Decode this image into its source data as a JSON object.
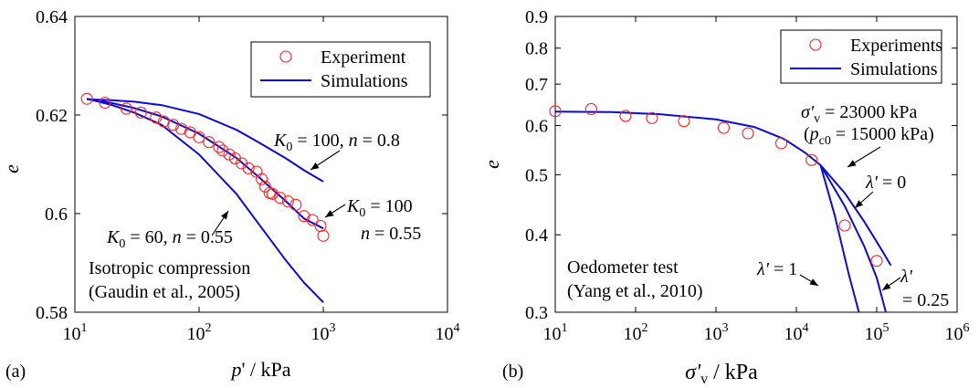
{
  "chart_data": [
    {
      "type": "scatter",
      "panel_label": "(a)",
      "xlabel": "p' / kPa",
      "ylabel": "e",
      "x_scale": "log",
      "xlim": [
        10,
        10000
      ],
      "ylim": [
        0.58,
        0.64
      ],
      "x_ticks": [
        10,
        100,
        1000,
        10000
      ],
      "x_tick_labels": [
        {
          "base": "10",
          "exp": "1"
        },
        {
          "base": "10",
          "exp": "2"
        },
        {
          "base": "10",
          "exp": "3"
        },
        {
          "base": "10",
          "exp": "4"
        }
      ],
      "y_ticks": [
        0.58,
        0.6,
        0.62,
        0.64
      ],
      "y_tick_labels": [
        "0.58",
        "0.6",
        "0.62",
        "0.64"
      ],
      "legend": {
        "position": "top-right",
        "entries": [
          {
            "label": "Experiment",
            "marker": "circle"
          },
          {
            "label": "Simulations",
            "marker": "line"
          }
        ]
      },
      "series": [
        {
          "name": "Experiment",
          "kind": "points",
          "color": "#ff2020",
          "x": [
            12.5,
            17.5,
            26,
            34,
            45,
            52,
            62,
            72,
            85,
            100,
            120,
            145,
            155,
            175,
            195,
            220,
            250,
            290,
            320,
            340,
            370,
            390,
            450,
            520,
            600,
            700,
            820,
            950,
            1000
          ],
          "y": [
            0.6233,
            0.6225,
            0.6213,
            0.6205,
            0.6195,
            0.6187,
            0.618,
            0.6172,
            0.6165,
            0.6155,
            0.6145,
            0.6135,
            0.6128,
            0.612,
            0.6112,
            0.6102,
            0.6092,
            0.6085,
            0.607,
            0.6055,
            0.6042,
            0.604,
            0.6032,
            0.6025,
            0.6018,
            0.5995,
            0.5987,
            0.5975,
            0.5955
          ]
        },
        {
          "name": "Simulations",
          "kind": "line",
          "color": "#0a0adc",
          "x": [
            12.5,
            20,
            30,
            50,
            100,
            200,
            300,
            500,
            700,
            1000
          ],
          "y": [
            0.6232,
            0.623,
            0.6227,
            0.622,
            0.6202,
            0.617,
            0.6145,
            0.6112,
            0.6088,
            0.6065
          ]
        },
        {
          "name": "Simulations",
          "kind": "line",
          "color": "#0a0adc",
          "x": [
            12.5,
            20,
            30,
            50,
            100,
            200,
            300,
            500,
            700,
            1000
          ],
          "y": [
            0.6233,
            0.6224,
            0.6214,
            0.6197,
            0.6162,
            0.6113,
            0.6075,
            0.6025,
            0.599,
            0.597
          ]
        },
        {
          "name": "Simulations",
          "kind": "line",
          "color": "#0a0adc",
          "x": [
            12.5,
            20,
            30,
            50,
            100,
            200,
            300,
            500,
            700,
            1000
          ],
          "y": [
            0.6233,
            0.622,
            0.6205,
            0.618,
            0.612,
            0.604,
            0.598,
            0.5905,
            0.586,
            0.582
          ]
        }
      ],
      "annotations": [
        {
          "id": "k100n08",
          "parts": [
            {
              "t": "K",
              "i": true
            },
            {
              "t": "0",
              "sub": true
            },
            {
              "t": " = 100, "
            },
            {
              "t": "n",
              "i": true
            },
            {
              "t": " = 0.8"
            }
          ]
        },
        {
          "id": "k60",
          "parts": [
            {
              "t": "K",
              "i": true
            },
            {
              "t": "0",
              "sub": true
            },
            {
              "t": " = 60, "
            },
            {
              "t": "n",
              "i": true
            },
            {
              "t": " = 0.55"
            }
          ]
        },
        {
          "id": "k100a",
          "parts": [
            {
              "t": "K",
              "i": true
            },
            {
              "t": "0",
              "sub": true
            },
            {
              "t": " = 100"
            }
          ]
        },
        {
          "id": "k100b",
          "parts": [
            {
              "t": "n",
              "i": true
            },
            {
              "t": " = 0.55"
            }
          ]
        }
      ],
      "notes": [
        "Isotropic compression",
        "(Gaudin et al., 2005)"
      ]
    },
    {
      "type": "scatter",
      "panel_label": "(b)",
      "xlabel": "σ'v / kPa",
      "ylabel": "e",
      "x_scale": "log",
      "y_scale": "log",
      "xlim": [
        10,
        1000000
      ],
      "ylim": [
        0.3,
        0.9
      ],
      "x_ticks": [
        10,
        100,
        1000,
        10000,
        100000,
        1000000
      ],
      "x_tick_labels": [
        {
          "base": "10",
          "exp": "1"
        },
        {
          "base": "10",
          "exp": "2"
        },
        {
          "base": "10",
          "exp": "3"
        },
        {
          "base": "10",
          "exp": "4"
        },
        {
          "base": "10",
          "exp": "5"
        },
        {
          "base": "10",
          "exp": "6"
        }
      ],
      "y_ticks": [
        0.3,
        0.4,
        0.5,
        0.6,
        0.7,
        0.8,
        0.9
      ],
      "y_tick_labels": [
        "0.3",
        "0.4",
        "0.5",
        "0.6",
        "0.7",
        "0.8",
        "0.9"
      ],
      "legend": {
        "position": "top-right",
        "entries": [
          {
            "label": "Experiments",
            "marker": "circle"
          },
          {
            "label": "Simulations",
            "marker": "line"
          }
        ]
      },
      "series": [
        {
          "name": "Experiments",
          "kind": "points",
          "color": "#ff2020",
          "x": [
            10,
            28,
            75,
            160,
            400,
            1250,
            2500,
            6500,
            15500,
            40000,
            100000
          ],
          "y": [
            0.633,
            0.638,
            0.622,
            0.617,
            0.61,
            0.595,
            0.583,
            0.562,
            0.528,
            0.414,
            0.363
          ]
        },
        {
          "name": "Simulations",
          "kind": "line",
          "color": "#0a0adc",
          "x": [
            10,
            50,
            200,
            1000,
            3000,
            7000,
            13000,
            20000
          ],
          "y": [
            0.632,
            0.631,
            0.626,
            0.614,
            0.597,
            0.571,
            0.542,
            0.518
          ]
        },
        {
          "name": "Simulations",
          "kind": "line",
          "color": "#0a0adc",
          "x": [
            20000,
            40000,
            70000,
            110000,
            150000
          ],
          "y": [
            0.518,
            0.467,
            0.42,
            0.382,
            0.357
          ]
        },
        {
          "name": "Simulations",
          "kind": "line",
          "color": "#0a0adc",
          "x": [
            20000,
            40000,
            70000,
            100000,
            130000
          ],
          "y": [
            0.518,
            0.445,
            0.383,
            0.341,
            0.3
          ]
        },
        {
          "name": "Simulations",
          "kind": "line",
          "color": "#0a0adc",
          "x": [
            20000,
            30000,
            45000,
            60000
          ],
          "y": [
            0.518,
            0.43,
            0.345,
            0.3
          ]
        }
      ],
      "annotations": [
        {
          "id": "sigma",
          "parts": [
            {
              "t": "σ'",
              "i": true
            },
            {
              "t": "v",
              "sub": true
            },
            {
              "t": " = 23000 kPa"
            }
          ]
        },
        {
          "id": "pc0",
          "parts": [
            {
              "t": "("
            },
            {
              "t": "p",
              "i": true
            },
            {
              "t": "c0",
              "sub": true
            },
            {
              "t": " = 15000 kPa)"
            }
          ]
        },
        {
          "id": "lam0",
          "parts": [
            {
              "t": "λ'",
              "i": true
            },
            {
              "t": " = 0"
            }
          ]
        },
        {
          "id": "lam1",
          "parts": [
            {
              "t": "λ'",
              "i": true
            },
            {
              "t": " = 1"
            }
          ]
        },
        {
          "id": "lam025a",
          "parts": [
            {
              "t": "λ'",
              "i": true
            }
          ]
        },
        {
          "id": "lam025b",
          "parts": [
            {
              "t": "= 0.25"
            }
          ]
        }
      ],
      "notes": [
        "Oedometer test",
        "(Yang et al., 2010)"
      ]
    }
  ]
}
